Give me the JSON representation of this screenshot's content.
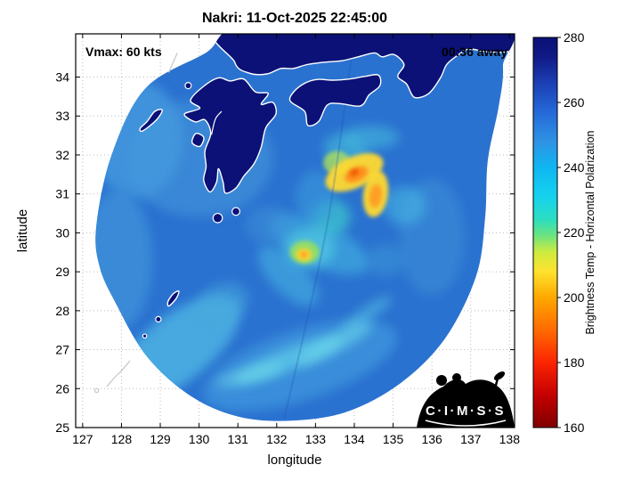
{
  "logo": {
    "text": "C·I·M·S·S"
  },
  "chart_data": {
    "type": "heatmap",
    "title": "Nakri: 11-Oct-2025 22:45:00",
    "xlabel": "longitude",
    "ylabel": "latitude",
    "annotations": {
      "vmax": "Vmax: 60 kts",
      "eta": "00:36 away"
    },
    "storm": {
      "name": "Nakri",
      "vmax_kts": 60,
      "timestamp": "11-Oct-2025 22:45:00"
    },
    "xlim": [
      126.82,
      138.13
    ],
    "ylim": [
      25,
      35.11
    ],
    "xticks": [
      127,
      128,
      129,
      130,
      131,
      132,
      133,
      134,
      135,
      136,
      137,
      138
    ],
    "yticks": [
      25,
      26,
      27,
      28,
      29,
      30,
      31,
      32,
      33,
      34
    ],
    "grid": true,
    "colorbar": {
      "label": "Brightness Temp - Horizontal Polarization",
      "range": [
        160,
        280
      ],
      "ticks": [
        160,
        180,
        200,
        220,
        240,
        260,
        280
      ],
      "stops": [
        [
          160,
          "#7f0000"
        ],
        [
          170,
          "#c40000"
        ],
        [
          180,
          "#fb2500"
        ],
        [
          190,
          "#ff6a00"
        ],
        [
          200,
          "#ffa800"
        ],
        [
          208,
          "#ffe22e"
        ],
        [
          214,
          "#cdeb3f"
        ],
        [
          219,
          "#6ce37e"
        ],
        [
          224,
          "#2cdec0"
        ],
        [
          231,
          "#15d2ee"
        ],
        [
          240,
          "#0fb6f2"
        ],
        [
          248,
          "#2e93e4"
        ],
        [
          257,
          "#2569d8"
        ],
        [
          266,
          "#1b3fb4"
        ],
        [
          274,
          "#101a86"
        ],
        [
          280,
          "#0a1076"
        ]
      ]
    },
    "swath": {
      "base_color": "#2a72d0",
      "base_temp_K": 258,
      "outline": [
        [
          127.35,
          30.15
        ],
        [
          127.74,
          31.98
        ],
        [
          128.61,
          33.7
        ],
        [
          130.15,
          34.61
        ],
        [
          131.52,
          35.4
        ],
        [
          137.6,
          35.4
        ],
        [
          137.83,
          34.27
        ],
        [
          137.72,
          33.24
        ],
        [
          137.44,
          31.86
        ],
        [
          137.37,
          30.38
        ],
        [
          137.14,
          28.89
        ],
        [
          136.34,
          27.29
        ],
        [
          135.19,
          26.14
        ],
        [
          133.82,
          25.41
        ],
        [
          132.44,
          25.18
        ],
        [
          131.06,
          25.27
        ],
        [
          129.8,
          25.8
        ],
        [
          128.65,
          26.83
        ],
        [
          127.85,
          28.2
        ],
        [
          127.44,
          29.12
        ]
      ]
    },
    "seam": {
      "color": "#1a4fb0",
      "opacity": 0.25,
      "points": [
        [
          134.0,
          35.1
        ],
        [
          133.3,
          30.2
        ],
        [
          132.2,
          25.25
        ]
      ]
    },
    "features_schema": "[lon,lat,rx_deg,ry_deg,rot_deg,color,opacity,blur]",
    "features": [
      [
        130.0,
        31.9,
        1.9,
        1.5,
        0,
        "#3c8bd8",
        0.85,
        "lg"
      ],
      [
        128.4,
        32.4,
        1.2,
        1.5,
        0,
        "#459ade",
        0.8,
        "lg"
      ],
      [
        127.9,
        29.3,
        0.9,
        1.8,
        0,
        "#3f93da",
        0.75,
        "lg"
      ],
      [
        129.4,
        27.0,
        2.0,
        0.85,
        -38,
        "#55c0e6",
        0.7,
        "lg"
      ],
      [
        132.6,
        26.6,
        2.6,
        0.9,
        -18,
        "#3f97de",
        0.75,
        "lg"
      ],
      [
        132.3,
        26.75,
        1.5,
        0.28,
        -22,
        "#63d6ea",
        0.65,
        "lg"
      ],
      [
        133.5,
        27.15,
        1.1,
        0.22,
        -28,
        "#6fdcec",
        0.6,
        "lg"
      ],
      [
        131.3,
        26.35,
        0.9,
        0.2,
        -15,
        "#6fd8ea",
        0.55,
        "lg"
      ],
      [
        134.3,
        27.9,
        0.8,
        0.18,
        -35,
        "#5fd0e8",
        0.5,
        "lg"
      ],
      [
        136.0,
        29.9,
        0.85,
        1.5,
        0,
        "#3a8ad6",
        0.7,
        "lg"
      ],
      [
        135.3,
        30.7,
        0.55,
        0.5,
        0,
        "#49bce4",
        0.55,
        "lg"
      ],
      [
        133.1,
        29.7,
        1.4,
        0.55,
        25,
        "#42b0e0",
        0.65,
        "lg"
      ],
      [
        132.3,
        28.9,
        1.0,
        0.45,
        45,
        "#46b4e2",
        0.6,
        "lg"
      ],
      [
        133.4,
        30.4,
        0.5,
        0.45,
        0,
        "#3fd2cc",
        0.65,
        "lg"
      ],
      [
        133.8,
        32.1,
        0.6,
        0.4,
        20,
        "#46c4dc",
        0.55,
        "lg"
      ],
      [
        134.4,
        32.45,
        0.75,
        0.3,
        0,
        "#4cc8e0",
        0.5,
        "lg"
      ],
      [
        131.8,
        30.2,
        0.6,
        0.5,
        0,
        "#3c90d8",
        0.55,
        "lg"
      ],
      [
        134.8,
        29.3,
        0.5,
        0.4,
        0,
        "#3e9ad8",
        0.5,
        "lg"
      ],
      [
        130.6,
        28.2,
        0.7,
        0.5,
        -20,
        "#48aade",
        0.5,
        "lg"
      ],
      [
        133.0,
        30.9,
        0.5,
        0.7,
        0,
        "#3b9bdc",
        0.6,
        "lg"
      ],
      [
        132.85,
        29.6,
        0.65,
        0.5,
        0,
        "#52cfe2",
        0.65,
        "lg"
      ],
      [
        133.55,
        31.8,
        0.35,
        0.3,
        0,
        "#b6e455",
        0.75,
        "sm"
      ],
      [
        134.0,
        31.55,
        0.8,
        0.4,
        -25,
        "#ffd930",
        0.95,
        "sm"
      ],
      [
        134.55,
        31.0,
        0.32,
        0.6,
        8,
        "#ffd930",
        0.95,
        "sm"
      ],
      [
        134.05,
        31.5,
        0.32,
        0.18,
        -25,
        "#ff8d1c",
        0.95,
        "sm"
      ],
      [
        134.55,
        30.95,
        0.16,
        0.3,
        8,
        "#ff9a22",
        0.9,
        "sm"
      ],
      [
        134.0,
        31.55,
        0.12,
        0.08,
        -25,
        "#ee4f00",
        0.9,
        "sm"
      ],
      [
        132.72,
        29.5,
        0.38,
        0.3,
        0,
        "#a5e34e",
        0.8,
        "sm"
      ],
      [
        132.7,
        29.44,
        0.2,
        0.16,
        0,
        "#ffd930",
        0.95,
        "sm"
      ],
      [
        132.7,
        29.44,
        0.1,
        0.08,
        0,
        "#ff9a22",
        0.9,
        "sm"
      ]
    ],
    "coastlines": {
      "fill": "#0b1176",
      "stroke": "#ffffff",
      "land": [
        {
          "name": "kyushu",
          "pts": [
            [
              130.28,
              31.05
            ],
            [
              130.45,
              31.3
            ],
            [
              130.5,
              31.65
            ],
            [
              130.62,
              31.3
            ],
            [
              130.68,
              31.02
            ],
            [
              130.95,
              31.15
            ],
            [
              131.15,
              31.45
            ],
            [
              131.42,
              31.78
            ],
            [
              131.6,
              32.2
            ],
            [
              131.72,
              32.7
            ],
            [
              131.98,
              33.05
            ],
            [
              131.9,
              33.35
            ],
            [
              131.6,
              33.3
            ],
            [
              131.78,
              33.58
            ],
            [
              131.45,
              33.62
            ],
            [
              131.15,
              33.95
            ],
            [
              130.8,
              33.9
            ],
            [
              130.5,
              33.98
            ],
            [
              130.1,
              33.75
            ],
            [
              129.78,
              33.4
            ],
            [
              130.02,
              33.2
            ],
            [
              129.62,
              33.05
            ],
            [
              129.9,
              32.85
            ],
            [
              130.15,
              32.9
            ],
            [
              130.3,
              32.55
            ],
            [
              130.15,
              32.1
            ],
            [
              130.18,
              31.7
            ],
            [
              130.12,
              31.35
            ]
          ]
        },
        {
          "name": "amakusa",
          "pts": [
            [
              129.92,
              32.55
            ],
            [
              130.12,
              32.45
            ],
            [
              130.02,
              32.22
            ],
            [
              129.82,
              32.32
            ]
          ]
        },
        {
          "name": "goto-islands",
          "pts": [
            [
              128.55,
              32.62
            ],
            [
              128.9,
              32.9
            ],
            [
              129.05,
              33.15
            ],
            [
              128.86,
              33.12
            ],
            [
              128.66,
              32.86
            ],
            [
              128.48,
              32.68
            ]
          ]
        },
        {
          "name": "shikoku",
          "pts": [
            [
              132.35,
              33.38
            ],
            [
              132.72,
              33.12
            ],
            [
              132.8,
              32.76
            ],
            [
              133.08,
              32.86
            ],
            [
              133.3,
              33.28
            ],
            [
              133.62,
              33.32
            ],
            [
              134.16,
              33.26
            ],
            [
              134.38,
              33.54
            ],
            [
              134.66,
              33.78
            ],
            [
              134.62,
              34.05
            ],
            [
              134.28,
              34.02
            ],
            [
              133.88,
              33.95
            ],
            [
              133.45,
              33.92
            ],
            [
              133.05,
              33.94
            ],
            [
              132.72,
              33.84
            ],
            [
              132.44,
              33.62
            ]
          ]
        },
        {
          "name": "honshu",
          "pts": [
            [
              130.88,
              35.4
            ],
            [
              130.92,
              34.38
            ],
            [
              131.3,
              34.1
            ],
            [
              131.75,
              34.08
            ],
            [
              132.1,
              34.22
            ],
            [
              132.42,
              34.22
            ],
            [
              132.78,
              34.32
            ],
            [
              133.2,
              34.38
            ],
            [
              133.68,
              34.42
            ],
            [
              134.1,
              34.52
            ],
            [
              134.52,
              34.62
            ],
            [
              134.72,
              34.52
            ],
            [
              135.02,
              34.58
            ],
            [
              135.28,
              34.32
            ],
            [
              135.12,
              34.02
            ],
            [
              135.35,
              33.82
            ],
            [
              135.55,
              33.48
            ],
            [
              135.92,
              33.58
            ],
            [
              136.22,
              33.98
            ],
            [
              136.38,
              34.32
            ],
            [
              136.65,
              34.55
            ],
            [
              136.95,
              34.72
            ],
            [
              137.4,
              34.65
            ],
            [
              137.95,
              34.65
            ],
            [
              138.2,
              34.8
            ],
            [
              138.2,
              35.4
            ]
          ]
        },
        {
          "name": "amami",
          "pts": [
            [
              129.22,
              28.12
            ],
            [
              129.4,
              28.3
            ],
            [
              129.48,
              28.5
            ],
            [
              129.34,
              28.44
            ],
            [
              129.2,
              28.24
            ]
          ]
        }
      ],
      "island_dots": [
        [
          130.48,
          30.38,
          0.12
        ],
        [
          130.95,
          30.55,
          0.1
        ],
        [
          129.72,
          33.78,
          0.08
        ],
        [
          128.95,
          27.78,
          0.07
        ],
        [
          128.6,
          27.35,
          0.05
        ]
      ],
      "inner_lines": [
        [
          [
            130.32,
            32.52
          ],
          [
            130.42,
            32.92
          ],
          [
            130.58,
            33.12
          ]
        ]
      ],
      "offswath": {
        "stroke": "#c9c9c9",
        "lines": [
          [
            [
              127.62,
              26.05
            ],
            [
              127.82,
              26.28
            ],
            [
              128.02,
              26.48
            ],
            [
              128.22,
              26.72
            ]
          ],
          [
            [
              129.22,
              34.12
            ],
            [
              129.35,
              34.42
            ],
            [
              129.44,
              34.62
            ]
          ]
        ],
        "dots": [
          [
            127.36,
            25.95,
            0.05
          ]
        ]
      }
    }
  }
}
